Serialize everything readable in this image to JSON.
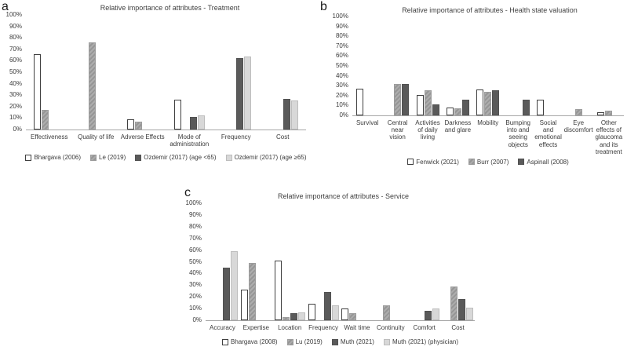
{
  "figure": {
    "background": "#ffffff",
    "accent_colors": {
      "white_series": "#ffffff",
      "hatch_series": "#a0a0a0",
      "dark_series": "#5a5a5a",
      "light_series": "#d8d8d8",
      "axis_line": "#a6a6a6",
      "text": "#3b3b3b"
    }
  },
  "chart_data": [
    {
      "type": "bar",
      "panel_label": "a",
      "title": "Relative importance of attributes - Treatment",
      "xlabel": "",
      "ylabel": "",
      "ylim": [
        0,
        100
      ],
      "grid": false,
      "legend_position": "bottom",
      "y_ticks": [
        "0%",
        "10%",
        "20%",
        "30%",
        "40%",
        "50%",
        "60%",
        "70%",
        "80%",
        "90%",
        "100%"
      ],
      "categories": [
        "Effectiveness",
        "Quality of life",
        "Adverse Effects",
        "Mode of administration",
        "Frequency",
        "Cost"
      ],
      "series": [
        {
          "name": "Bhargava (2006)",
          "style": "white",
          "values": [
            66,
            0,
            9,
            26,
            0,
            0
          ]
        },
        {
          "name": "Le (2019)",
          "style": "hatch",
          "values": [
            17,
            76,
            7,
            0,
            0,
            0
          ]
        },
        {
          "name": "Ozdemir (2017) (age <65)",
          "style": "dark",
          "values": [
            0,
            0,
            0,
            11,
            62,
            27
          ]
        },
        {
          "name": "Ozdemir (2017) (age ≥65)",
          "style": "light",
          "values": [
            0,
            0,
            0,
            12,
            64,
            25
          ]
        }
      ]
    },
    {
      "type": "bar",
      "panel_label": "b",
      "title": "Relative importance of attributes - Health state valuation",
      "xlabel": "",
      "ylabel": "",
      "ylim": [
        0,
        100
      ],
      "grid": false,
      "legend_position": "bottom",
      "y_ticks": [
        "0%",
        "10%",
        "20%",
        "30%",
        "40%",
        "50%",
        "60%",
        "70%",
        "80%",
        "90%",
        "100%"
      ],
      "categories": [
        "Survival",
        "Central near vision",
        "Activities of daily living",
        "Darkness and glare",
        "Mobility",
        "Bumping into and seeing objects",
        "Social and emotional effects",
        "Eye discomfort",
        "Other effects of glaucoma and its treatment"
      ],
      "series": [
        {
          "name": "Fenwick (2021)",
          "style": "white",
          "values": [
            27,
            0,
            21,
            8,
            26,
            0,
            16,
            0,
            3
          ]
        },
        {
          "name": "Burr (2007)",
          "style": "hatch",
          "values": [
            0,
            32,
            25,
            7,
            24,
            0,
            0,
            6,
            5
          ]
        },
        {
          "name": "Aspinall (2008)",
          "style": "dark",
          "values": [
            0,
            32,
            11,
            16,
            25,
            16,
            0,
            0,
            0
          ]
        }
      ]
    },
    {
      "type": "bar",
      "panel_label": "c",
      "title": "Relative importance of attributes - Service",
      "xlabel": "",
      "ylabel": "",
      "ylim": [
        0,
        100
      ],
      "grid": false,
      "legend_position": "bottom",
      "y_ticks": [
        "0%",
        "10%",
        "20%",
        "30%",
        "40%",
        "50%",
        "60%",
        "70%",
        "80%",
        "90%",
        "100%"
      ],
      "categories": [
        "Accuracy",
        "Expertise",
        "Location",
        "Frequency",
        "Wait time",
        "Continuity",
        "Comfort",
        "Cost"
      ],
      "series": [
        {
          "name": "Bhargava (2008)",
          "style": "white",
          "values": [
            0,
            26,
            51,
            14,
            10,
            0,
            0,
            0
          ]
        },
        {
          "name": "Lu (2019)",
          "style": "hatch",
          "values": [
            0,
            49,
            3,
            0,
            6,
            13,
            0,
            29
          ]
        },
        {
          "name": "Muth (2021)",
          "style": "dark",
          "values": [
            45,
            0,
            6,
            24,
            0,
            0,
            8,
            18
          ]
        },
        {
          "name": "Muth (2021) (physician)",
          "style": "light",
          "values": [
            59,
            0,
            7,
            13,
            0,
            0,
            10,
            11
          ]
        }
      ]
    }
  ]
}
